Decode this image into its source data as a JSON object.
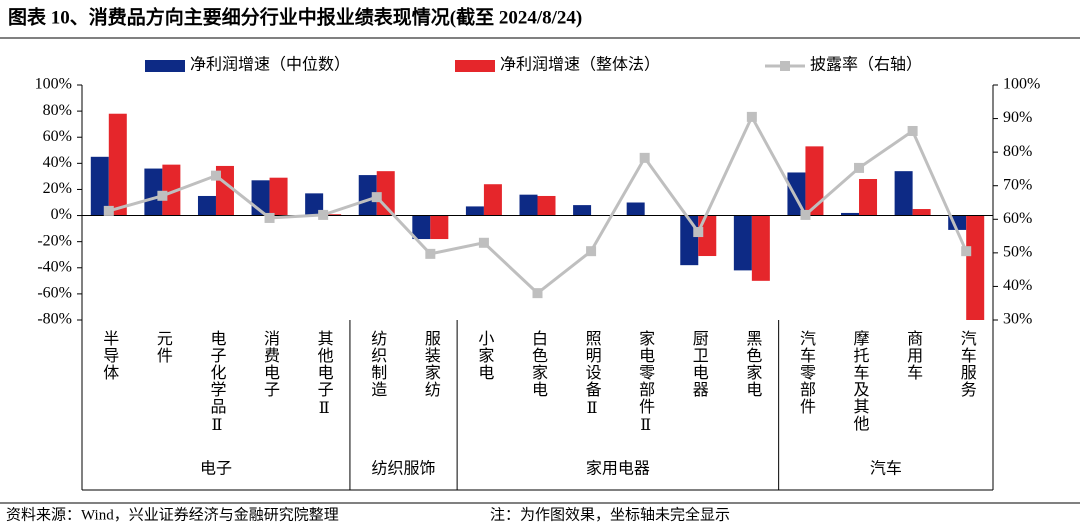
{
  "chart_data": {
    "type": "bar",
    "title": "图表 10、消费品方向主要细分行业中报业绩表现情况(截至 2024/8/24)",
    "source": "资料来源：Wind，兴业证券经济与金融研究院整理",
    "note": "注：为作图效果，坐标轴未完全显示",
    "categories": [
      "半导体",
      "元件",
      "电子化学品Ⅱ",
      "消费电子",
      "其他电子Ⅱ",
      "纺织制造",
      "服装家纺",
      "小家电",
      "白色家电",
      "照明设备Ⅱ",
      "家电零部件Ⅱ",
      "厨卫电器",
      "黑色家电",
      "汽车零部件",
      "摩托车及其他",
      "商用车",
      "汽车服务"
    ],
    "groups": [
      {
        "name": "电子",
        "count": 5
      },
      {
        "name": "纺织服饰",
        "count": 2
      },
      {
        "name": "家用电器",
        "count": 6
      },
      {
        "name": "汽车",
        "count": 4
      }
    ],
    "series": [
      {
        "name": "净利润增速（中位数）",
        "color": "#0d2a85",
        "type": "bar",
        "values": [
          45,
          36,
          15,
          27,
          17,
          31,
          -18,
          7,
          16,
          8,
          10,
          -38,
          -42,
          33,
          2,
          34,
          -11
        ]
      },
      {
        "name": "净利润增速（整体法）",
        "color": "#e5262b",
        "type": "bar",
        "values": [
          78,
          39,
          38,
          29,
          1,
          34,
          -18,
          24,
          15,
          0,
          0,
          -31,
          -50,
          53,
          28,
          5,
          -80
        ]
      },
      {
        "name": "披露率（右轴）",
        "color": "#bfbfbf",
        "type": "line",
        "axis": "y2",
        "values": [
          62.5,
          67,
          73,
          60.4,
          61.3,
          66.6,
          49.7,
          53,
          38,
          50.5,
          78.3,
          56.2,
          90.5,
          61.3,
          75.3,
          86.3,
          50.5
        ]
      }
    ],
    "ylim": [
      -80,
      100
    ],
    "yticks": [
      {
        "value": -80,
        "label": "-80%"
      },
      {
        "value": -60,
        "label": "-60%"
      },
      {
        "value": -40,
        "label": "-40%"
      },
      {
        "value": -20,
        "label": "-20%"
      },
      {
        "value": 0,
        "label": "0%"
      },
      {
        "value": 20,
        "label": "20%"
      },
      {
        "value": 40,
        "label": "40%"
      },
      {
        "value": 60,
        "label": "60%"
      },
      {
        "value": 80,
        "label": "80%"
      },
      {
        "value": 100,
        "label": "100%"
      }
    ],
    "y2lim": [
      30,
      100
    ],
    "y2ticks": [
      {
        "value": 30,
        "label": "30%"
      },
      {
        "value": 40,
        "label": "40%"
      },
      {
        "value": 50,
        "label": "50%"
      },
      {
        "value": 60,
        "label": "60%"
      },
      {
        "value": 70,
        "label": "70%"
      },
      {
        "value": 80,
        "label": "80%"
      },
      {
        "value": 90,
        "label": "90%"
      },
      {
        "value": 100,
        "label": "100%"
      }
    ]
  }
}
